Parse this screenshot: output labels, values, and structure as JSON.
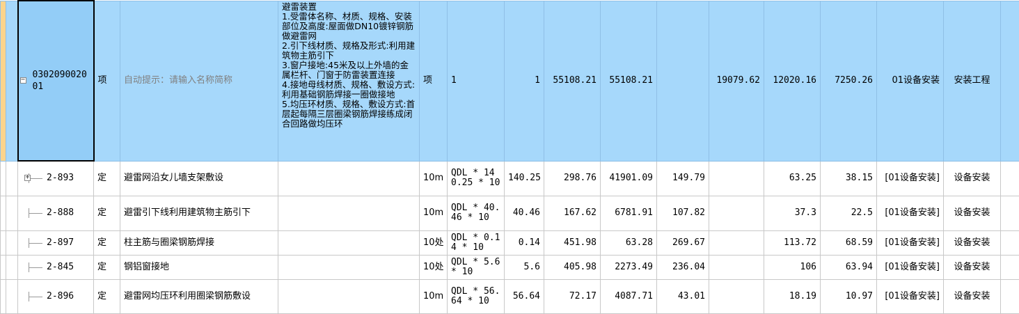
{
  "main_row": {
    "code": "030209002001",
    "type": "项",
    "name_hint": "自动提示：请输入名称简称",
    "description": "避雷装置\n1.受雷体名称、材质、规格、安装部位及高度:屋面做DN10镀锌钢筋做避雷网\n2.引下线材质、规格及形式:利用建筑物主筋引下\n3.窗户接地:45米及以上外墙的金属栏杆、门窗于防雷装置连接\n4.接地母线材质、规格、敷设方式:利用基础钢筋焊接一圈做接地\n5.均压环材质、规格、敷设方式:首层起每隔三层圈梁钢筋焊接练成闭合回路做均压环",
    "unit": "项",
    "qty_expr": "1",
    "qty": "1",
    "unit_price": "55108.21",
    "total": "55108.21",
    "col_blank": "",
    "labor": "19079.62",
    "material": "12020.16",
    "machine": "7250.26",
    "category": "01设备安装",
    "major": "安装工程"
  },
  "sub_rows": [
    {
      "code": "2-893",
      "type": "定",
      "name": "避雷网沿女儿墙支架敷设",
      "unit": "10m",
      "qty_expr": "QDL * 140.25 * 10",
      "qty": "140.25",
      "unit_price": "298.76",
      "total": "41901.09",
      "base": "149.79",
      "labor": "63.25",
      "material": "38.15",
      "category": "[01设备安装]",
      "major": "设备安装",
      "expandable": true
    },
    {
      "code": "2-888",
      "type": "定",
      "name": "避雷引下线利用建筑物主筋引下",
      "unit": "10m",
      "qty_expr": "QDL * 40.46 * 10",
      "qty": "40.46",
      "unit_price": "167.62",
      "total": "6781.91",
      "base": "107.82",
      "labor": "37.3",
      "material": "22.5",
      "category": "[01设备安装]",
      "major": "设备安装",
      "expandable": false
    },
    {
      "code": "2-897",
      "type": "定",
      "name": "柱主筋与圈梁钢筋焊接",
      "unit": "10处",
      "qty_expr": "QDL * 0.14 * 10",
      "qty": "0.14",
      "unit_price": "451.98",
      "total": "63.28",
      "base": "269.67",
      "labor": "113.72",
      "material": "68.59",
      "category": "[01设备安装]",
      "major": "设备安装",
      "expandable": false
    },
    {
      "code": "2-845",
      "type": "定",
      "name": "钢铝窗接地",
      "unit": "10处",
      "qty_expr": "QDL * 5.6 * 10",
      "qty": "5.6",
      "unit_price": "405.98",
      "total": "2273.49",
      "base": "236.04",
      "labor": "106",
      "material": "63.94",
      "category": "[01设备安装]",
      "major": "设备安装",
      "expandable": false
    },
    {
      "code": "2-896",
      "type": "定",
      "name": "避雷网均压环利用圈梁钢筋敷设",
      "unit": "10m",
      "qty_expr": "QDL * 56.64 * 10",
      "qty": "56.64",
      "unit_price": "72.17",
      "total": "4087.71",
      "base": "43.01",
      "labor": "18.19",
      "material": "10.97",
      "category": "[01设备安装]",
      "major": "设备安装",
      "expandable": false
    }
  ]
}
